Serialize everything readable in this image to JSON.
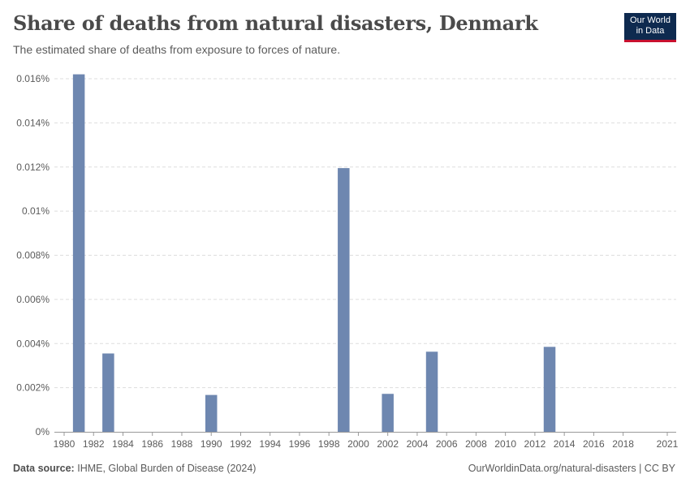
{
  "header": {
    "title": "Share of deaths from natural disasters, Denmark",
    "subtitle": "The estimated share of deaths from exposure to forces of nature."
  },
  "logo": {
    "line1": "Our World",
    "line2": "in Data"
  },
  "footer": {
    "source_label": "Data source:",
    "source_text": "IHME, Global Burden of Disease (2024)",
    "credit": "OurWorldinData.org/natural-disasters | CC BY"
  },
  "colors": {
    "bar": "#6e87b0",
    "grid": "#dddddd",
    "axis": "#999999",
    "logo_bg": "#0e2a4f",
    "logo_accent": "#c8102e"
  },
  "chart_data": {
    "type": "bar",
    "title": "Share of deaths from natural disasters, Denmark",
    "xlabel": "",
    "ylabel": "",
    "unit": "%",
    "xlim": [
      1980,
      2021
    ],
    "ylim": [
      0,
      0.016
    ],
    "grid": true,
    "x_ticks": [
      1980,
      1982,
      1984,
      1986,
      1988,
      1990,
      1992,
      1994,
      1996,
      1998,
      2000,
      2002,
      2004,
      2006,
      2008,
      2010,
      2012,
      2014,
      2016,
      2018,
      2021
    ],
    "y_ticks": [
      "0%",
      "0.002%",
      "0.004%",
      "0.006%",
      "0.008%",
      "0.01%",
      "0.012%",
      "0.014%",
      "0.016%"
    ],
    "y_tick_values": [
      0,
      0.002,
      0.004,
      0.006,
      0.008,
      0.01,
      0.012,
      0.014,
      0.016
    ],
    "bars": [
      {
        "year": 1981,
        "value": 0.0162
      },
      {
        "year": 1983,
        "value": 0.00355
      },
      {
        "year": 1990,
        "value": 0.00167
      },
      {
        "year": 1999,
        "value": 0.01195
      },
      {
        "year": 2002,
        "value": 0.00172
      },
      {
        "year": 2005,
        "value": 0.00363
      },
      {
        "year": 2013,
        "value": 0.00385
      }
    ]
  }
}
